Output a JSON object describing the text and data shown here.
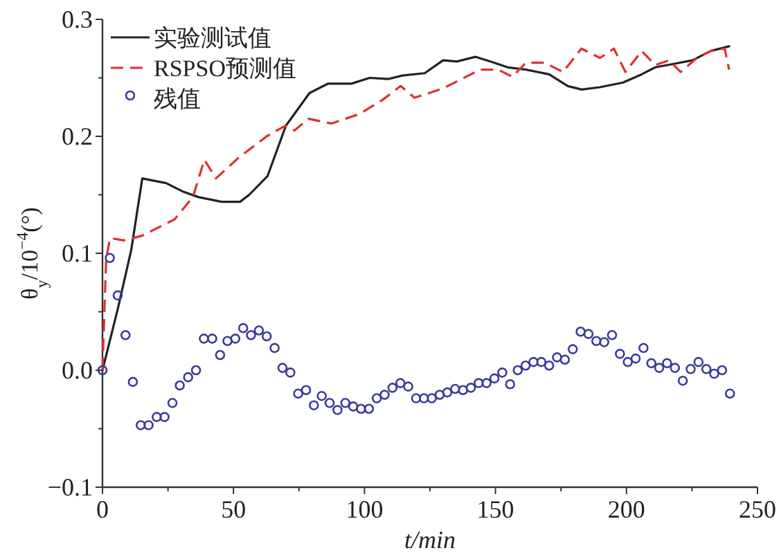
{
  "chart_data": {
    "type": "line",
    "xlabel": "t/min",
    "ylabel": "θ$_{y}$/10$^{−4}$(°)",
    "xlim": [
      0,
      250
    ],
    "ylim": [
      -0.1,
      0.3
    ],
    "xticks": [
      0,
      {
        "value": 25,
        "label": null
      },
      50,
      {
        "value": 75,
        "label": null
      },
      100,
      {
        "value": 125,
        "label": null
      },
      150,
      {
        "value": 175,
        "label": null
      },
      200,
      {
        "value": 225,
        "label": null
      },
      250
    ],
    "yticks": [
      {
        "value": -0.1,
        "label": "−0.1"
      },
      {
        "value": -0.05,
        "label": null
      },
      {
        "value": 0,
        "label": "0.0"
      },
      {
        "value": 0.05,
        "label": null
      },
      {
        "value": 0.1,
        "label": "0.1"
      },
      {
        "value": 0.15,
        "label": null
      },
      {
        "value": 0.2,
        "label": "0.2"
      },
      {
        "value": 0.25,
        "label": null
      },
      {
        "value": 0.3,
        "label": "0.3"
      }
    ],
    "grid": false,
    "legend": "top left",
    "series": [
      {
        "name": "实验测试值",
        "type": "line",
        "color": "#222222",
        "line_style": "solid",
        "marker": "none",
        "x": [
          0,
          5.8,
          11,
          15.2,
          24.3,
          30.5,
          36.7,
          45.5,
          52.5,
          56,
          63,
          70,
          79,
          86,
          95,
          102,
          109,
          114.5,
          123,
          130,
          135.3,
          142.3,
          149.4,
          154.7,
          161.7,
          170.5,
          177.6,
          182.9,
          189.9,
          198.7,
          205.8,
          211,
          218.1,
          225.2,
          232.2,
          239.2
        ],
        "values": [
          0,
          0.052,
          0.103,
          0.164,
          0.16,
          0.153,
          0.148,
          0.144,
          0.144,
          0.15,
          0.166,
          0.209,
          0.237,
          0.245,
          0.245,
          0.25,
          0.249,
          0.252,
          0.254,
          0.265,
          0.264,
          0.268,
          0.263,
          0.259,
          0.257,
          0.253,
          0.243,
          0.24,
          0.242,
          0.246,
          0.253,
          0.259,
          0.262,
          0.265,
          0.273,
          0.277
        ]
      },
      {
        "name": "RSPSO预测值",
        "type": "line",
        "color": "#e03030",
        "line_style": "dashed",
        "marker": "none",
        "x": [
          0,
          1.4,
          2.9,
          8.1,
          15.1,
          22.2,
          27.5,
          34.5,
          38.9,
          43.3,
          52.1,
          62.7,
          69.7,
          73.3,
          78.6,
          87.4,
          98,
          106.8,
          113.8,
          119.1,
          130,
          144.1,
          151.1,
          156.4,
          161.7,
          168.7,
          175.8,
          182.8,
          189.9,
          195.2,
          199.6,
          205.8,
          211,
          216.3,
          220.7,
          226.9,
          232.2,
          237.5,
          239.2
        ],
        "values": [
          0,
          0.095,
          0.113,
          0.111,
          0.115,
          0.123,
          0.129,
          0.148,
          0.18,
          0.164,
          0.182,
          0.2,
          0.209,
          0.205,
          0.215,
          0.211,
          0.219,
          0.231,
          0.243,
          0.233,
          0.241,
          0.257,
          0.257,
          0.251,
          0.263,
          0.263,
          0.255,
          0.275,
          0.267,
          0.275,
          0.255,
          0.273,
          0.261,
          0.265,
          0.255,
          0.267,
          0.273,
          0.275,
          0.257
        ]
      },
      {
        "name": "残值",
        "type": "scatter",
        "color": "#3b3b9e",
        "marker": "circle",
        "x": [
          0,
          2.8,
          5.8,
          8.8,
          11.6,
          14.6,
          17.6,
          20.7,
          23.7,
          26.7,
          29.5,
          32.7,
          35.7,
          38.7,
          41.9,
          44.9,
          47.7,
          50.7,
          53.7,
          56.7,
          59.7,
          62.7,
          65.7,
          68.7,
          71.7,
          74.7,
          77.7,
          80.7,
          83.7,
          86.7,
          89.7,
          92.7,
          95.7,
          98.7,
          101.7,
          104.7,
          107.7,
          110.7,
          113.7,
          116.7,
          119.7,
          122.7,
          125.7,
          128.7,
          131.6,
          134.6,
          137.6,
          140.6,
          143.6,
          146.6,
          149.6,
          152.6,
          155.6,
          158.5,
          161.5,
          164.5,
          167.5,
          170.5,
          173.5,
          176.5,
          179.5,
          182.5,
          185.5,
          188.5,
          191.5,
          194.5,
          197.5,
          200.5,
          203.5,
          206.5,
          209.5,
          212.5,
          215.5,
          218.5,
          221.5,
          224.5,
          227.5,
          230.5,
          233.5,
          236.5,
          239.5
        ],
        "values": [
          0,
          0.096,
          0.064,
          0.03,
          -0.01,
          -0.047,
          -0.047,
          -0.04,
          -0.04,
          -0.028,
          -0.013,
          -0.006,
          0,
          0.027,
          0.027,
          0.013,
          0.025,
          0.027,
          0.036,
          0.03,
          0.034,
          0.029,
          0.019,
          0.002,
          -0.002,
          -0.02,
          -0.017,
          -0.03,
          -0.022,
          -0.028,
          -0.034,
          -0.028,
          -0.031,
          -0.033,
          -0.033,
          -0.024,
          -0.021,
          -0.015,
          -0.011,
          -0.014,
          -0.024,
          -0.024,
          -0.024,
          -0.021,
          -0.019,
          -0.016,
          -0.017,
          -0.015,
          -0.011,
          -0.011,
          -0.007,
          -0.002,
          -0.012,
          0,
          0.004,
          0.007,
          0.007,
          0.004,
          0.011,
          0.009,
          0.018,
          0.033,
          0.031,
          0.025,
          0.024,
          0.03,
          0.014,
          0.007,
          0.01,
          0.019,
          0.006,
          0.002,
          0.006,
          0.002,
          -0.009,
          0.001,
          0.007,
          0.001,
          -0.003,
          0,
          -0.02
        ]
      }
    ]
  }
}
